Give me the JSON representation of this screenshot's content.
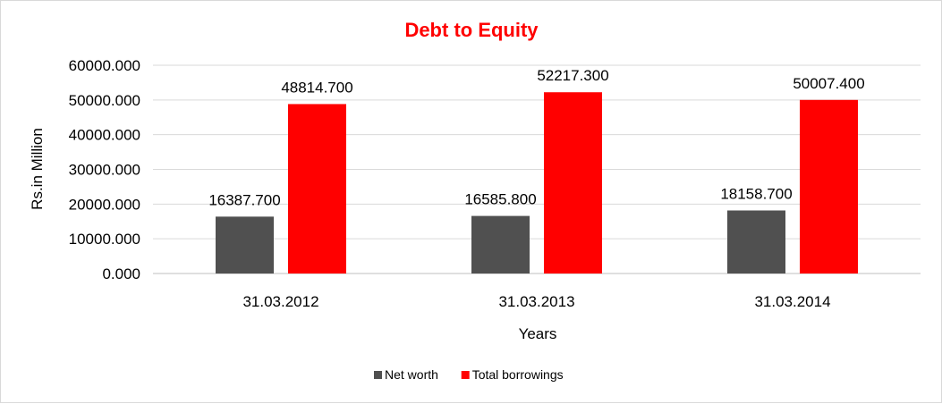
{
  "chart_data": {
    "type": "bar",
    "title": "Debt to Equity",
    "xlabel": "Years",
    "ylabel": "Rs.in Million",
    "categories": [
      "31.03.2012",
      "31.03.2013",
      "31.03.2014"
    ],
    "series": [
      {
        "name": "Net worth",
        "color": "#505050",
        "values": [
          16387.7,
          16585.8,
          18158.7
        ],
        "labels": [
          "16387.700",
          "16585.800",
          "18158.700"
        ]
      },
      {
        "name": "Total borrowings",
        "color": "#ff0000",
        "values": [
          48814.7,
          52217.3,
          50007.4
        ],
        "labels": [
          "48814.700",
          "52217.300",
          "50007.400"
        ]
      }
    ],
    "ylim": [
      0,
      60000
    ],
    "yticks": [
      0,
      10000,
      20000,
      30000,
      40000,
      50000,
      60000
    ],
    "ytick_labels": [
      "0.000",
      "10000.000",
      "20000.000",
      "30000.000",
      "40000.000",
      "50000.000",
      "60000.000"
    ],
    "grid": true,
    "legend_position": "bottom",
    "title_color": "#ff0000"
  }
}
